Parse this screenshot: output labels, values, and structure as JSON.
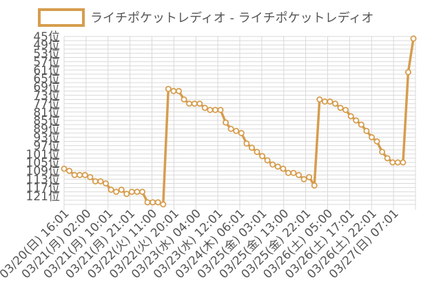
{
  "chart_data": {
    "type": "line",
    "legend": {
      "position": "top",
      "label": "ライチポケットレディオ - ライチポケットレディオ"
    },
    "color": "#d69d4e",
    "y_inverted": true,
    "ylim": [
      45,
      125
    ],
    "yticks": [
      "45位",
      "49位",
      "53位",
      "57位",
      "61位",
      "65位",
      "69位",
      "73位",
      "77位",
      "81位",
      "85位",
      "89位",
      "93位",
      "97位",
      "101位",
      "105位",
      "109位",
      "113位",
      "117位",
      "121位"
    ],
    "xticks": [
      "03/20(日) 16:01",
      "03/21(月) 02:00",
      "03/21(月) 10:01",
      "03/21(月) 21:01",
      "03/22(火) 11:00",
      "03/22(火) 20:01",
      "03/23(水) 04:00",
      "03/23(水) 12:01",
      "03/24(木) 06:01",
      "03/25(金) 03:01",
      "03/25(金) 13:00",
      "03/25(金) 22:01",
      "03/26(土) 05:00",
      "03/26(土) 17:01",
      "03/26(土) 22:01",
      "03/27(日) 07:01"
    ],
    "grid": true,
    "series": [
      {
        "name": "ライチポケットレディオ - ライチポケットレディオ",
        "values": [
          108,
          109,
          111,
          111,
          111,
          112,
          114,
          114,
          115,
          118,
          119,
          118,
          120,
          119,
          119,
          119,
          124,
          124,
          124,
          125,
          70,
          71,
          71,
          75,
          77,
          77,
          77,
          79,
          80,
          80,
          80,
          86,
          89,
          90,
          91,
          96,
          98,
          100,
          102,
          104,
          106,
          107,
          108,
          110,
          110,
          111,
          113,
          112,
          116,
          75,
          76,
          76,
          77,
          79,
          80,
          83,
          85,
          87,
          90,
          93,
          95,
          100,
          103,
          105,
          105,
          105,
          62,
          46
        ]
      }
    ]
  }
}
